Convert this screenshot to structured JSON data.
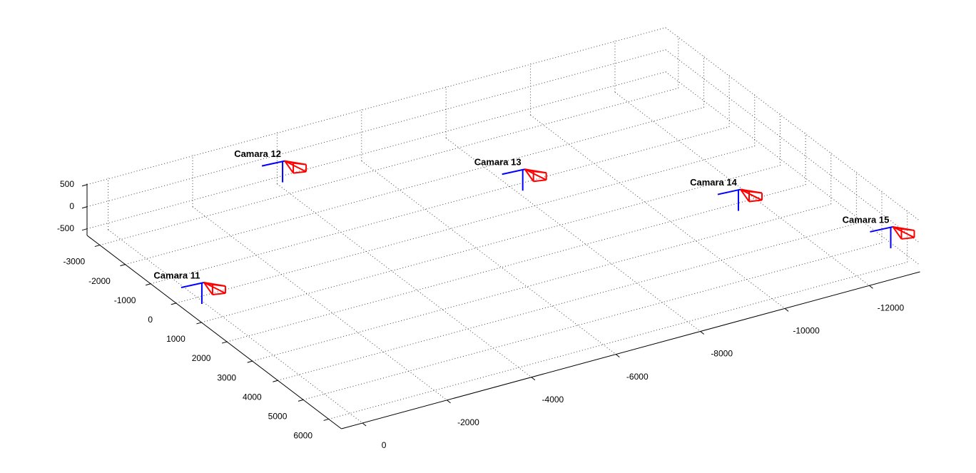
{
  "chart_data": {
    "type": "scatter3d",
    "labels": [
      "Camara 11",
      "Camara 12",
      "Camara 13",
      "Camara 14",
      "Camara 15"
    ],
    "x": [
      200,
      -4000,
      -8000,
      -11300,
      -13100
    ],
    "y": [
      600,
      -3200,
      -400,
      2600,
      5600
    ],
    "z": [
      0,
      0,
      0,
      0,
      0
    ],
    "color": "#ff0000",
    "axis_color": "#0000ff",
    "xlim": [
      -13200,
      500
    ],
    "ylim": [
      -3500,
      6500
    ],
    "zlim": [
      -650,
      520
    ],
    "xticks": [
      0,
      -2000,
      -4000,
      -6000,
      -8000,
      -10000,
      -12000
    ],
    "yticks": [
      -3000,
      -2000,
      -1000,
      0,
      1000,
      2000,
      3000,
      4000,
      5000,
      6000
    ],
    "zticks": [
      -500,
      0,
      500
    ],
    "grid": true
  }
}
